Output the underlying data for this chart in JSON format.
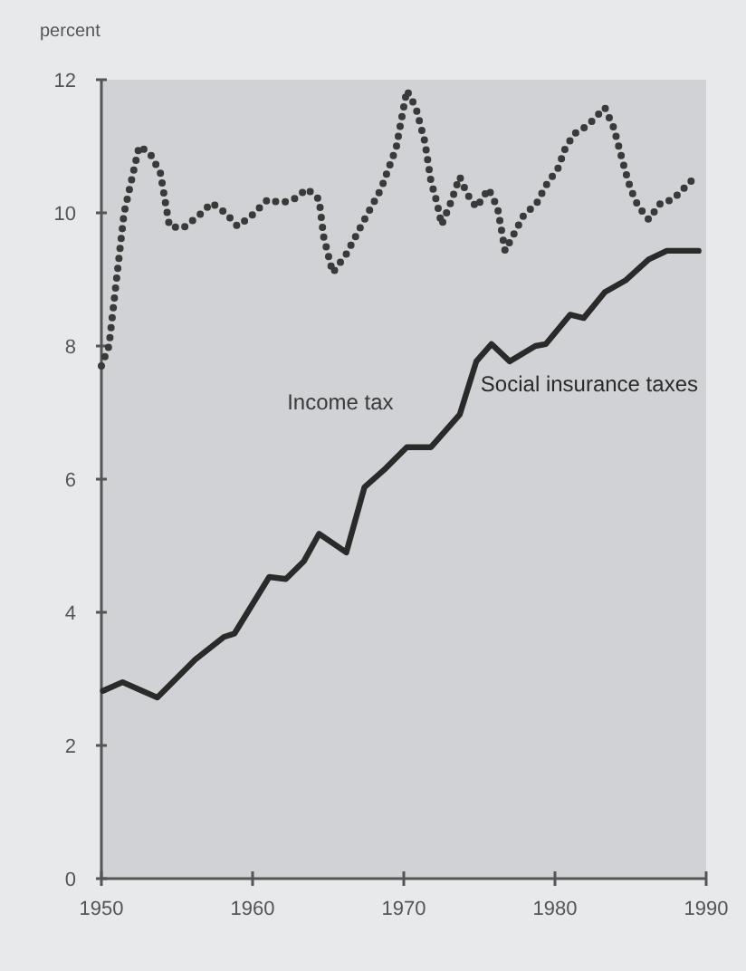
{
  "chart_data": {
    "type": "line",
    "ylabel": "percent",
    "xlim": [
      1950,
      1990
    ],
    "xticks": [
      1950,
      1960,
      1970,
      1980,
      1990
    ],
    "ylim": [
      0,
      12
    ],
    "yticks": [
      0,
      2,
      4,
      6,
      8,
      10,
      12
    ],
    "grid": false,
    "series": [
      {
        "name": "Income tax",
        "color": "#3a3a3a",
        "line_style": "dotted",
        "x": [
          1950.0,
          1950.5,
          1951.0,
          1951.5,
          1952.0,
          1952.5,
          1953.2,
          1953.9,
          1954.5,
          1955.4,
          1956.4,
          1957.3,
          1958.2,
          1959.0,
          1959.9,
          1961.0,
          1961.9,
          1962.7,
          1963.6,
          1964.4,
          1964.7,
          1965.3,
          1966.2,
          1967.4,
          1968.5,
          1969.5,
          1970.2,
          1970.8,
          1971.4,
          1971.8,
          1972.2,
          1972.5,
          1973.1,
          1973.7,
          1974.2,
          1974.8,
          1975.6,
          1976.2,
          1976.7,
          1977.9,
          1978.8,
          1979.4,
          1980.2,
          1980.7,
          1981.3,
          1982.2,
          1983.3,
          1983.9,
          1984.6,
          1985.0,
          1985.5,
          1986.2,
          1987.0,
          1987.8,
          1989.1
        ],
        "values": [
          7.7,
          8.0,
          9.0,
          10.0,
          10.5,
          11.0,
          10.9,
          10.6,
          9.8,
          9.77,
          9.95,
          10.15,
          10.0,
          9.8,
          9.95,
          10.2,
          10.15,
          10.2,
          10.36,
          10.2,
          9.64,
          9.1,
          9.38,
          9.9,
          10.36,
          10.98,
          11.84,
          11.58,
          11.06,
          10.47,
          10.15,
          9.82,
          10.15,
          10.54,
          10.28,
          10.08,
          10.36,
          10.08,
          9.43,
          9.95,
          10.15,
          10.41,
          10.67,
          10.98,
          11.19,
          11.32,
          11.58,
          11.27,
          10.67,
          10.36,
          10.1,
          9.9,
          10.15,
          10.2,
          10.5
        ]
      },
      {
        "name": "Social insurance taxes",
        "color": "#2a2a2a",
        "line_style": "solid",
        "x": [
          1950.1,
          1951.4,
          1953.7,
          1956.2,
          1958.1,
          1958.8,
          1961.1,
          1962.2,
          1963.4,
          1964.4,
          1966.2,
          1967.4,
          1968.7,
          1970.2,
          1971.8,
          1973.7,
          1974.8,
          1975.8,
          1977.0,
          1978.7,
          1979.4,
          1981.0,
          1981.9,
          1983.3,
          1984.7,
          1986.2,
          1987.4,
          1989.5
        ],
        "values": [
          2.82,
          2.95,
          2.72,
          3.29,
          3.63,
          3.68,
          4.53,
          4.5,
          4.77,
          5.18,
          4.9,
          5.88,
          6.14,
          6.48,
          6.48,
          6.97,
          7.77,
          8.03,
          7.77,
          8.0,
          8.03,
          8.47,
          8.42,
          8.81,
          8.99,
          9.3,
          9.43,
          9.43
        ]
      }
    ]
  }
}
